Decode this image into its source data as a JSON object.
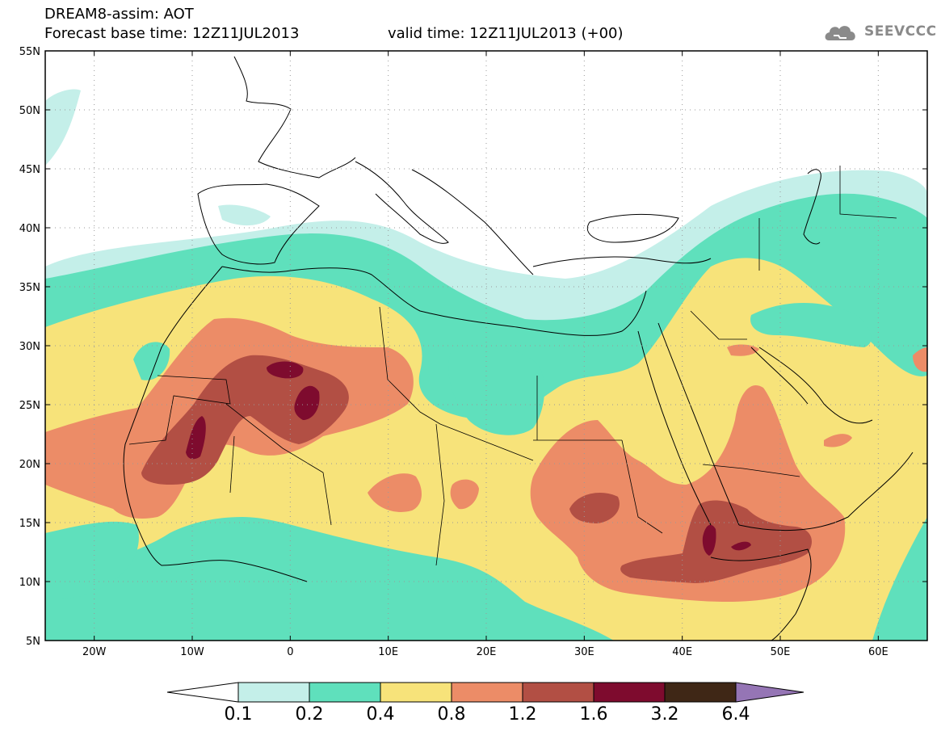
{
  "header": {
    "title": "DREAM8-assim: AOT",
    "base_time": "Forecast base time: 12Z11JUL2013",
    "valid_time": "valid time: 12Z11JUL2013 (+00)"
  },
  "logo": {
    "text": "SEEVCCC",
    "icon": "cloud-icon",
    "color": "#8a8a8a"
  },
  "map": {
    "lon_range": [
      -25,
      65
    ],
    "lat_range": [
      5,
      55
    ],
    "lat_labels": [
      "55N",
      "50N",
      "45N",
      "40N",
      "35N",
      "30N",
      "25N",
      "20N",
      "15N",
      "10N",
      "5N"
    ],
    "lon_labels": [
      "20W",
      "10W",
      "0",
      "10E",
      "20E",
      "30E",
      "40E",
      "50E",
      "60E"
    ]
  },
  "colorbar": {
    "levels": [
      "0.1",
      "0.2",
      "0.4",
      "0.8",
      "1.2",
      "1.6",
      "3.2",
      "6.4"
    ],
    "colors": [
      "#c4efe9",
      "#5fe0bc",
      "#f7e37a",
      "#ec8c67",
      "#b24f44",
      "#7e0b2e",
      "#3f2716"
    ],
    "under_color": "#ffffff",
    "over_color": "#9575b5"
  }
}
